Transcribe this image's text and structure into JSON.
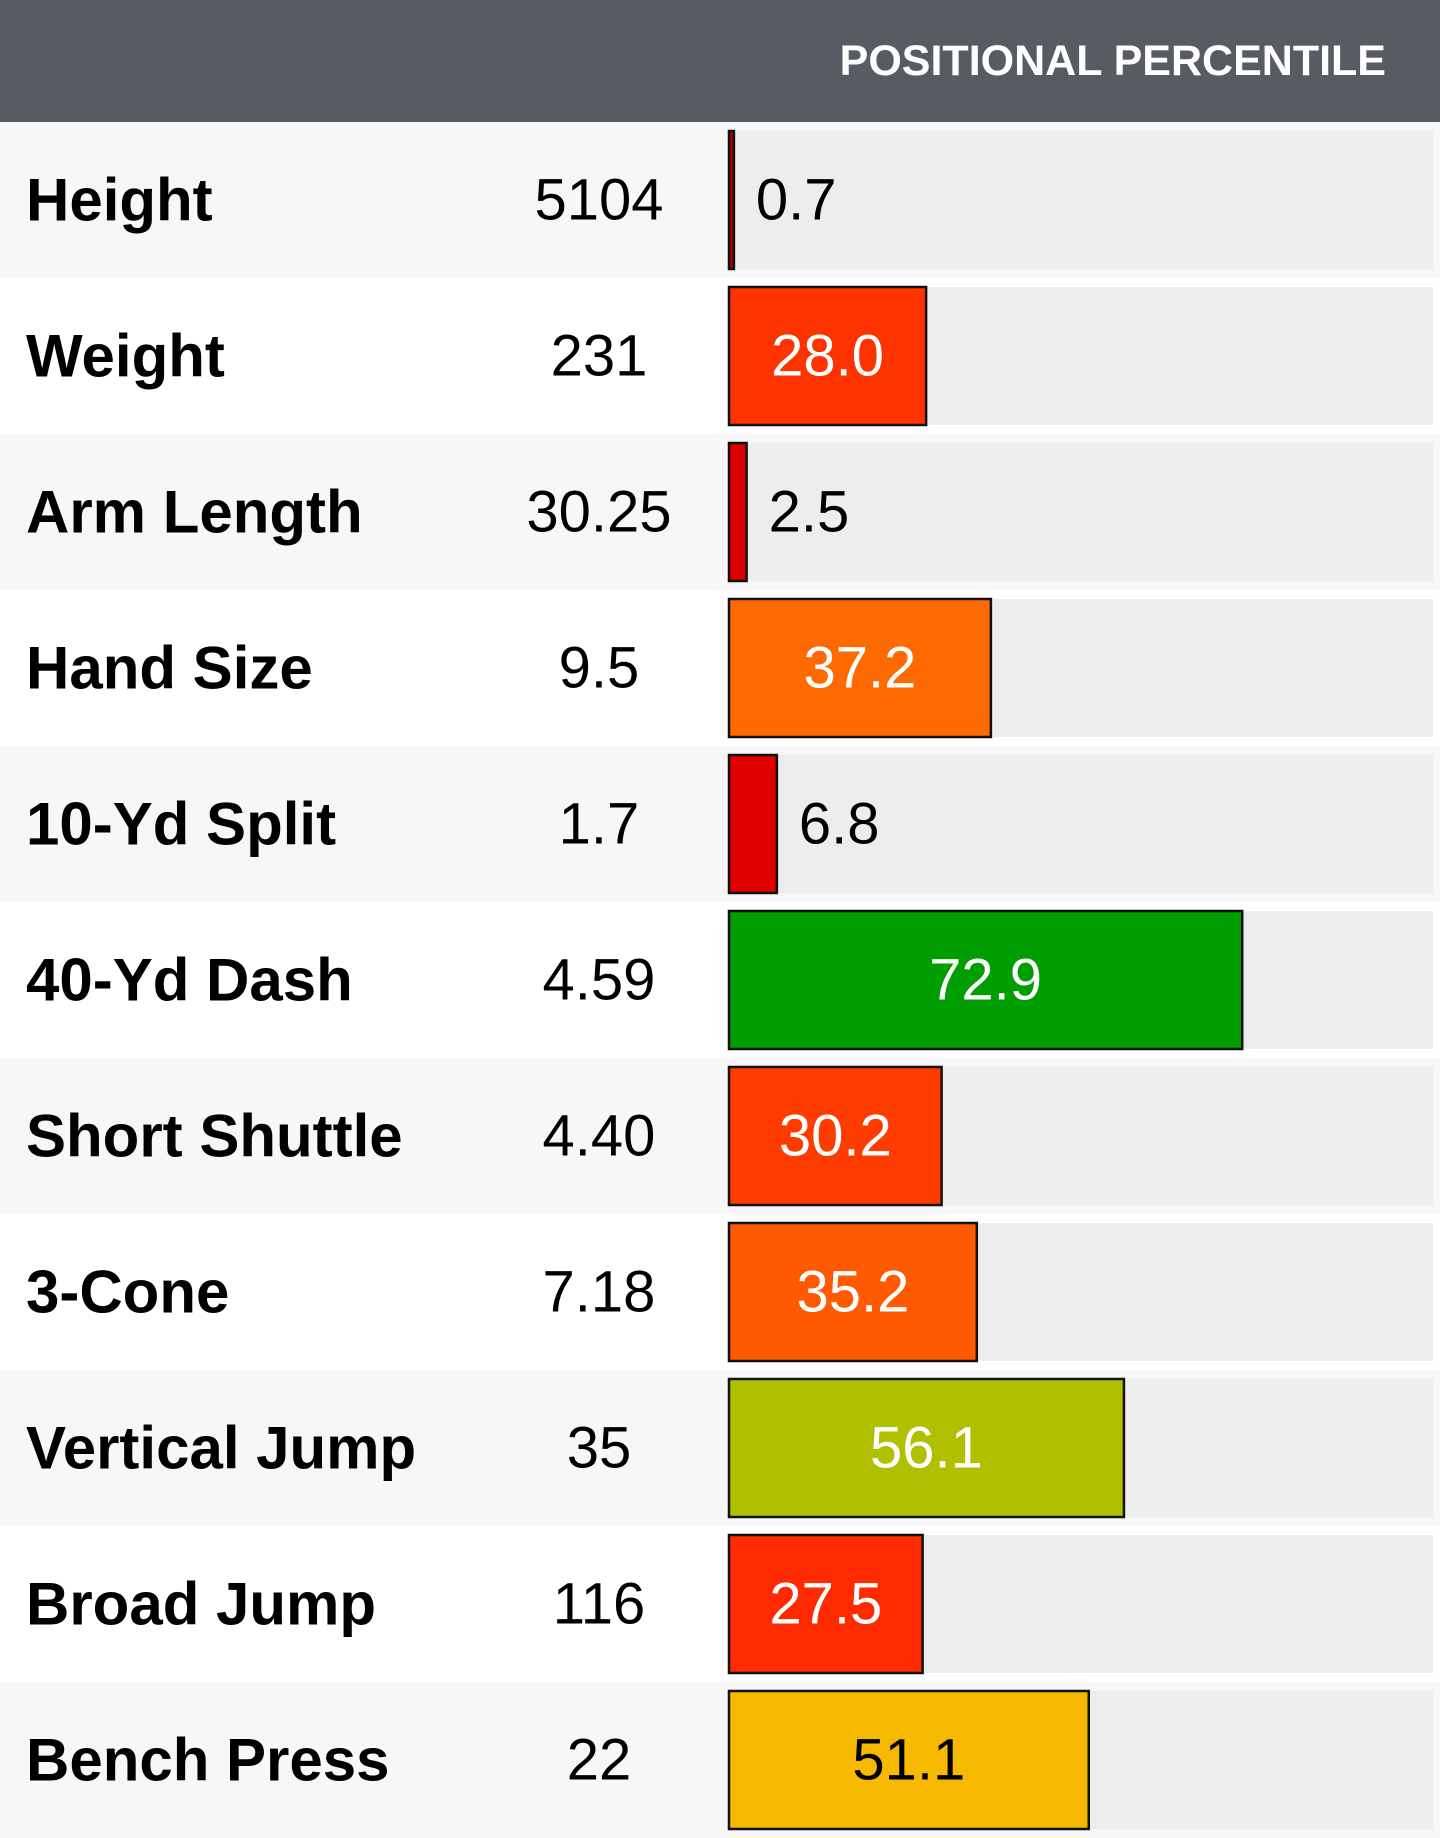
{
  "chart_data": {
    "type": "bar",
    "title": "POSITIONAL PERCENTILE",
    "categories": [
      "Height",
      "Weight",
      "Arm Length",
      "Hand Size",
      "10-Yd Split",
      "40-Yd Dash",
      "Short Shuttle",
      "3-Cone",
      "Vertical Jump",
      "Broad Jump",
      "Bench Press"
    ],
    "measurements": [
      "5104",
      "231",
      "30.25",
      "9.5",
      "1.7",
      "4.59",
      "4.40",
      "7.18",
      "35",
      "116",
      "22"
    ],
    "values": [
      0.7,
      28.0,
      2.5,
      37.2,
      6.8,
      72.9,
      30.2,
      35.2,
      56.1,
      27.5,
      51.1
    ],
    "value_labels": [
      "0.7",
      "28.0",
      "2.5",
      "37.2",
      "6.8",
      "72.9",
      "30.2",
      "35.2",
      "56.1",
      "27.5",
      "51.1"
    ],
    "colors": [
      "#b00000",
      "#ff3300",
      "#dd0000",
      "#ff6a00",
      "#e00000",
      "#009e00",
      "#ff3c00",
      "#ff5a00",
      "#b0c000",
      "#ff2a00",
      "#f7b900"
    ],
    "value_label_colors": [
      "#000000",
      "#ffffff",
      "#000000",
      "#ffffff",
      "#000000",
      "#ffffff",
      "#ffffff",
      "#ffffff",
      "#ffffff",
      "#ffffff",
      "#000000"
    ],
    "xlim": [
      0,
      100
    ]
  }
}
